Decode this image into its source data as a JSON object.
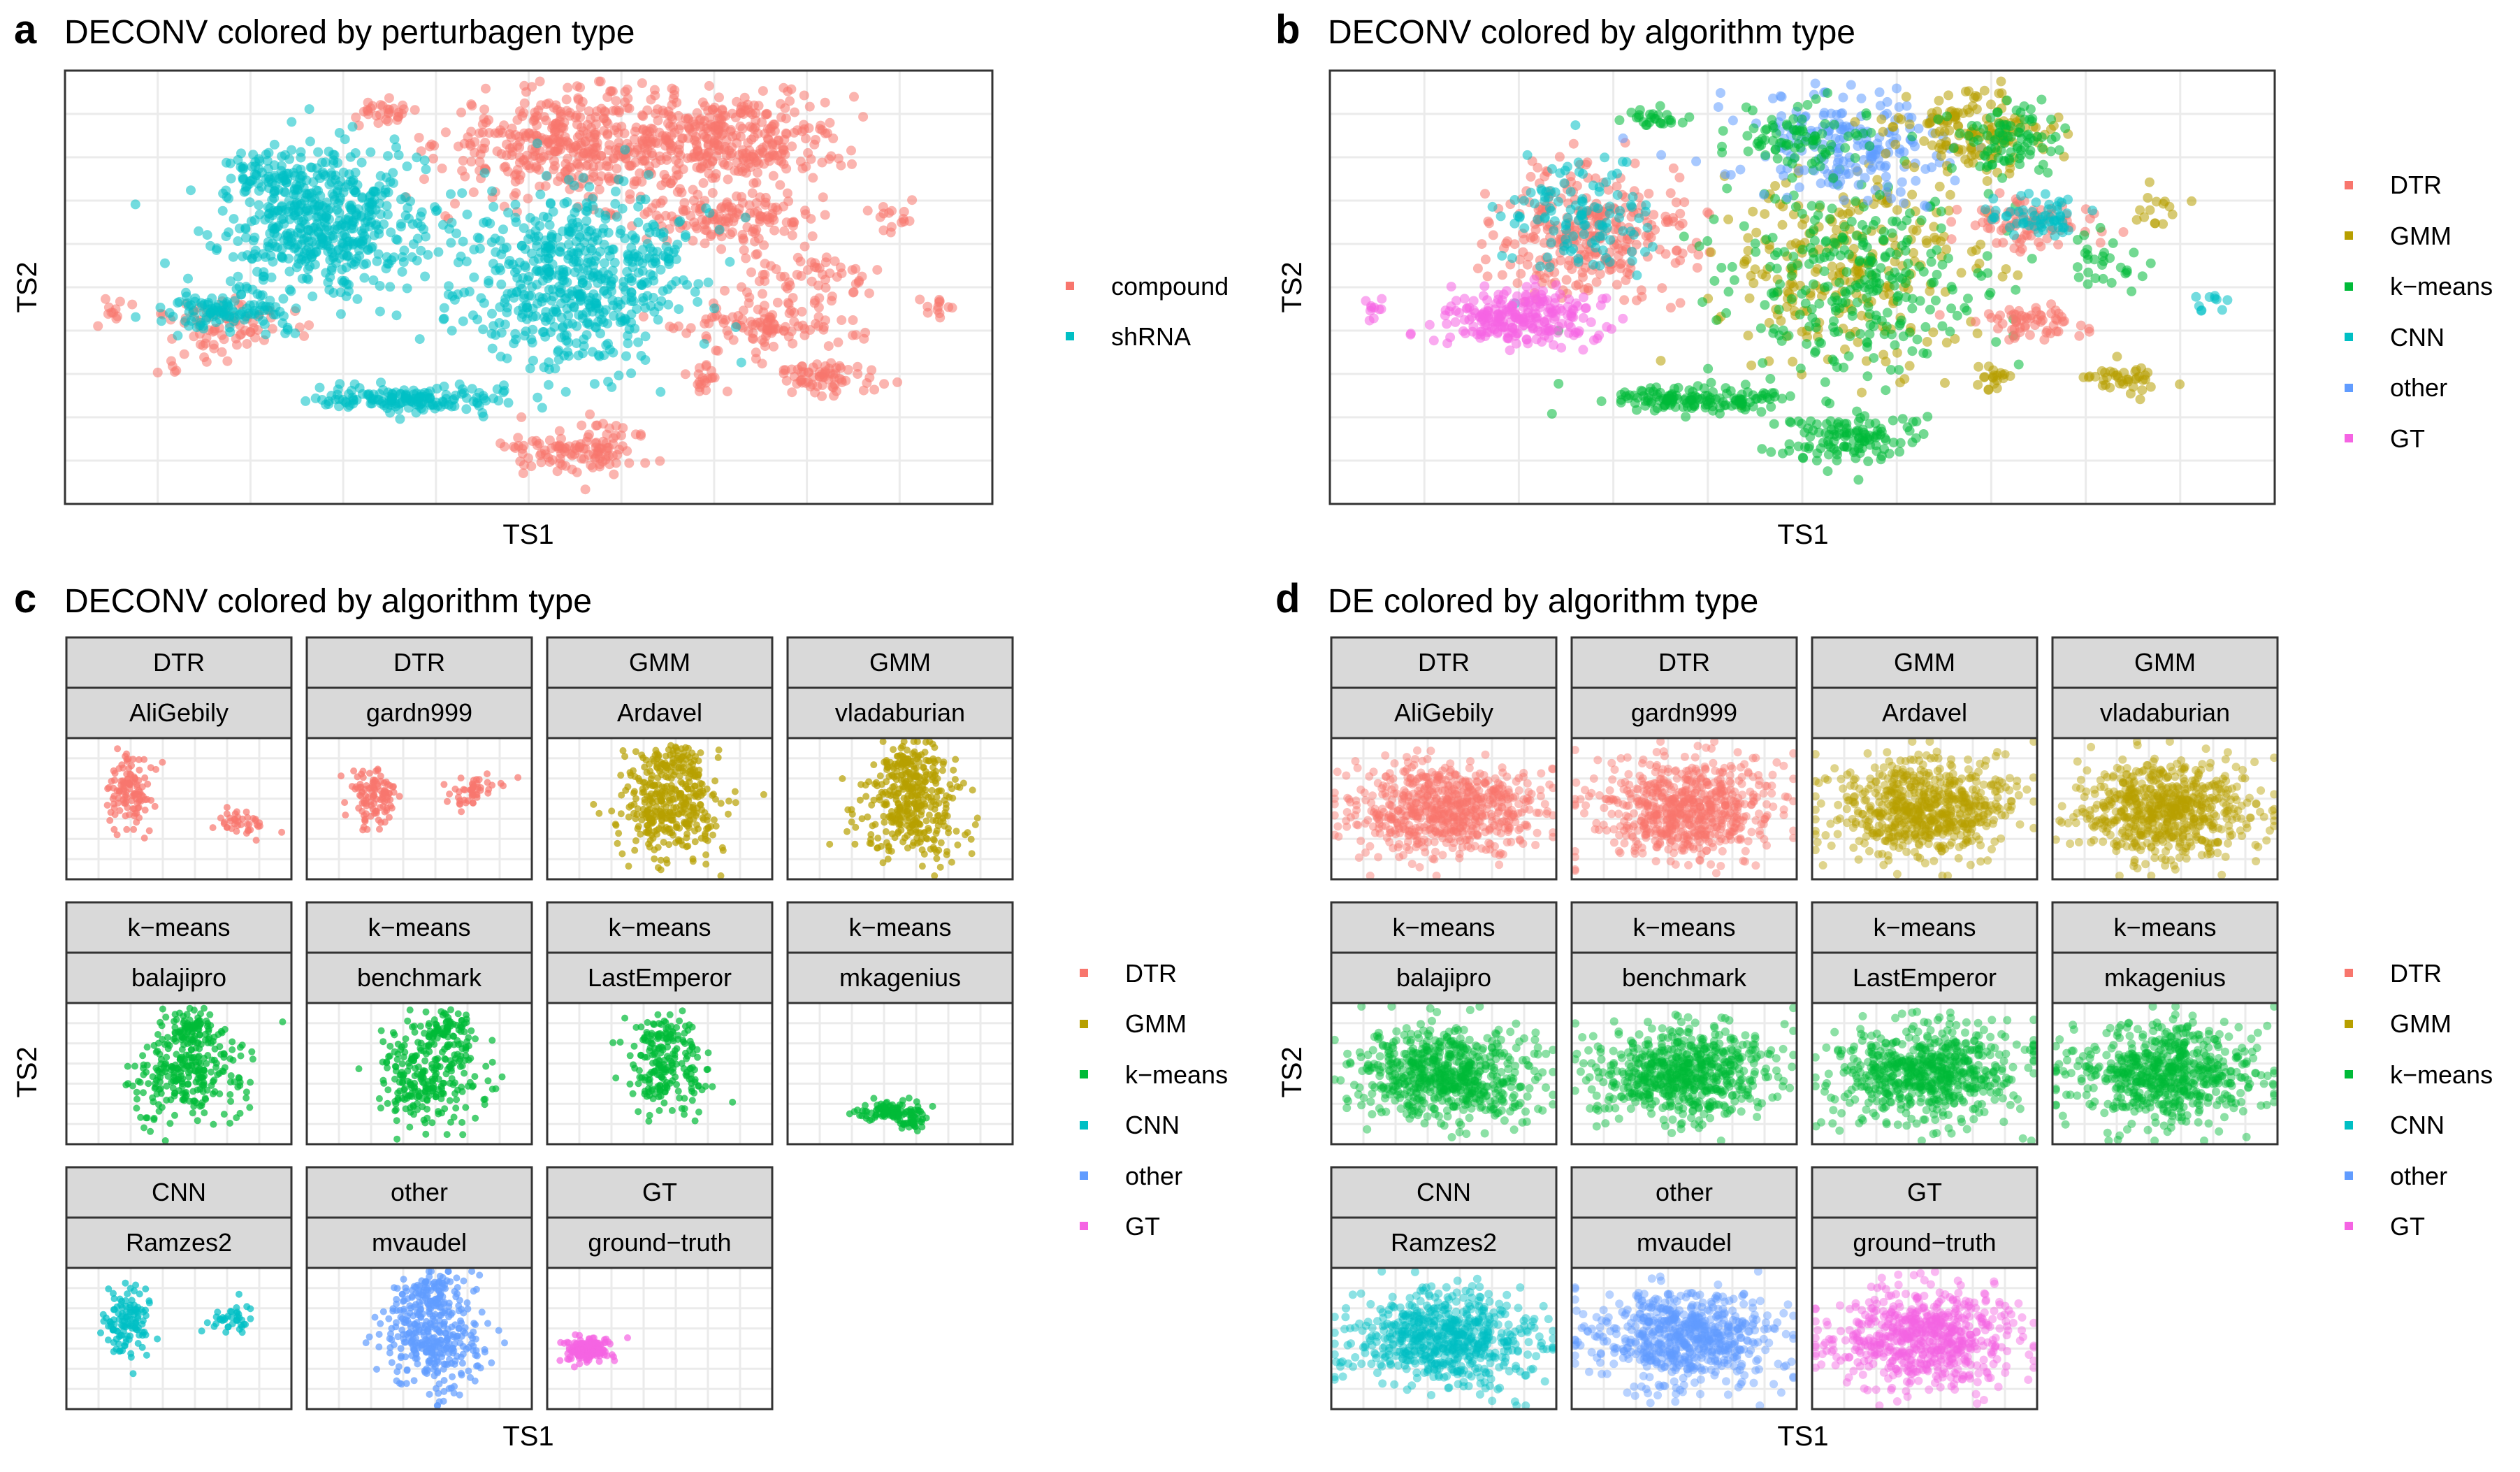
{
  "chart_data": [
    {
      "panel": "a",
      "type": "scatter",
      "title": "DECONV colored by perturbagen type",
      "xlabel": "TS1",
      "ylabel": "TS2",
      "legend": "right",
      "grid": true,
      "series": [
        {
          "name": "compound",
          "color": "#F8766D"
        },
        {
          "name": "shRNA",
          "color": "#00BFC4"
        }
      ],
      "clusters": [
        {
          "series": "compound",
          "x": 0.34,
          "y": 0.9,
          "sx": 0.02,
          "sy": 0.015,
          "n": 30
        },
        {
          "series": "compound",
          "x": 0.55,
          "y": 0.83,
          "sx": 0.07,
          "sy": 0.06,
          "n": 420
        },
        {
          "series": "compound",
          "x": 0.72,
          "y": 0.84,
          "sx": 0.06,
          "sy": 0.06,
          "n": 330
        },
        {
          "series": "compound",
          "x": 0.72,
          "y": 0.66,
          "sx": 0.04,
          "sy": 0.03,
          "n": 130
        },
        {
          "series": "compound",
          "x": 0.8,
          "y": 0.52,
          "sx": 0.04,
          "sy": 0.03,
          "n": 60
        },
        {
          "series": "compound",
          "x": 0.76,
          "y": 0.41,
          "sx": 0.05,
          "sy": 0.025,
          "n": 110
        },
        {
          "series": "compound",
          "x": 0.82,
          "y": 0.29,
          "sx": 0.03,
          "sy": 0.02,
          "n": 70
        },
        {
          "series": "compound",
          "x": 0.69,
          "y": 0.29,
          "sx": 0.01,
          "sy": 0.02,
          "n": 20
        },
        {
          "series": "compound",
          "x": 0.89,
          "y": 0.67,
          "sx": 0.015,
          "sy": 0.02,
          "n": 15
        },
        {
          "series": "compound",
          "x": 0.94,
          "y": 0.46,
          "sx": 0.01,
          "sy": 0.02,
          "n": 12
        },
        {
          "series": "compound",
          "x": 0.55,
          "y": 0.13,
          "sx": 0.04,
          "sy": 0.03,
          "n": 120
        },
        {
          "series": "compound",
          "x": 0.18,
          "y": 0.41,
          "sx": 0.04,
          "sy": 0.03,
          "n": 70
        },
        {
          "series": "compound",
          "x": 0.05,
          "y": 0.45,
          "sx": 0.01,
          "sy": 0.015,
          "n": 10
        },
        {
          "series": "compound",
          "x": 0.13,
          "y": 0.32,
          "sx": 0.02,
          "sy": 0.02,
          "n": 8
        },
        {
          "series": "shRNA",
          "x": 0.28,
          "y": 0.65,
          "sx": 0.055,
          "sy": 0.08,
          "n": 520
        },
        {
          "series": "shRNA",
          "x": 0.55,
          "y": 0.52,
          "sx": 0.06,
          "sy": 0.1,
          "n": 560
        },
        {
          "series": "shRNA",
          "x": 0.18,
          "y": 0.45,
          "sx": 0.04,
          "sy": 0.03,
          "n": 120
        },
        {
          "series": "shRNA",
          "x": 0.38,
          "y": 0.24,
          "sx": 0.05,
          "sy": 0.015,
          "n": 160
        },
        {
          "series": "shRNA",
          "x": 0.23,
          "y": 0.76,
          "sx": 0.03,
          "sy": 0.03,
          "n": 60
        }
      ]
    },
    {
      "panel": "b",
      "type": "scatter",
      "title": "DECONV colored by algorithm type",
      "xlabel": "TS1",
      "ylabel": "TS2",
      "legend": "right",
      "grid": true,
      "series": [
        {
          "name": "DTR",
          "color": "#F8766D"
        },
        {
          "name": "GMM",
          "color": "#B79F00"
        },
        {
          "name": "k−means",
          "color": "#00BA38"
        },
        {
          "name": "CNN",
          "color": "#00BFC4"
        },
        {
          "name": "other",
          "color": "#619CFF"
        },
        {
          "name": "GT",
          "color": "#F564E3"
        }
      ],
      "clusters": [
        {
          "series": "DTR",
          "x": 0.28,
          "y": 0.62,
          "sx": 0.05,
          "sy": 0.08,
          "n": 300
        },
        {
          "series": "CNN",
          "x": 0.26,
          "y": 0.65,
          "sx": 0.04,
          "sy": 0.07,
          "n": 120
        },
        {
          "series": "GMM",
          "x": 0.55,
          "y": 0.55,
          "sx": 0.07,
          "sy": 0.11,
          "n": 260
        },
        {
          "series": "k−means",
          "x": 0.55,
          "y": 0.5,
          "sx": 0.07,
          "sy": 0.11,
          "n": 280
        },
        {
          "series": "other",
          "x": 0.55,
          "y": 0.82,
          "sx": 0.06,
          "sy": 0.06,
          "n": 200
        },
        {
          "series": "k−means",
          "x": 0.5,
          "y": 0.85,
          "sx": 0.04,
          "sy": 0.05,
          "n": 90
        },
        {
          "series": "GMM",
          "x": 0.68,
          "y": 0.86,
          "sx": 0.04,
          "sy": 0.05,
          "n": 150
        },
        {
          "series": "k−means",
          "x": 0.72,
          "y": 0.84,
          "sx": 0.03,
          "sy": 0.05,
          "n": 90
        },
        {
          "series": "DTR",
          "x": 0.73,
          "y": 0.65,
          "sx": 0.04,
          "sy": 0.03,
          "n": 80
        },
        {
          "series": "CNN",
          "x": 0.75,
          "y": 0.66,
          "sx": 0.03,
          "sy": 0.025,
          "n": 60
        },
        {
          "series": "DTR",
          "x": 0.75,
          "y": 0.42,
          "sx": 0.03,
          "sy": 0.02,
          "n": 60
        },
        {
          "series": "GT",
          "x": 0.2,
          "y": 0.43,
          "sx": 0.04,
          "sy": 0.035,
          "n": 240
        },
        {
          "series": "GT",
          "x": 0.05,
          "y": 0.45,
          "sx": 0.01,
          "sy": 0.02,
          "n": 10
        },
        {
          "series": "k−means",
          "x": 0.38,
          "y": 0.24,
          "sx": 0.05,
          "sy": 0.015,
          "n": 140
        },
        {
          "series": "k−means",
          "x": 0.55,
          "y": 0.15,
          "sx": 0.04,
          "sy": 0.03,
          "n": 120
        },
        {
          "series": "k−means",
          "x": 0.34,
          "y": 0.89,
          "sx": 0.015,
          "sy": 0.015,
          "n": 25
        },
        {
          "series": "GMM",
          "x": 0.7,
          "y": 0.29,
          "sx": 0.01,
          "sy": 0.02,
          "n": 20
        },
        {
          "series": "GMM",
          "x": 0.84,
          "y": 0.29,
          "sx": 0.025,
          "sy": 0.02,
          "n": 40
        },
        {
          "series": "k−means",
          "x": 0.82,
          "y": 0.55,
          "sx": 0.03,
          "sy": 0.03,
          "n": 30
        },
        {
          "series": "GMM",
          "x": 0.88,
          "y": 0.68,
          "sx": 0.015,
          "sy": 0.02,
          "n": 15
        },
        {
          "series": "CNN",
          "x": 0.93,
          "y": 0.47,
          "sx": 0.01,
          "sy": 0.015,
          "n": 10
        }
      ]
    },
    {
      "panel": "c",
      "type": "scatter",
      "title": "DECONV colored by algorithm type",
      "xlabel": "TS1",
      "ylabel": "TS2",
      "legend": "right",
      "grid": true,
      "series": [
        {
          "name": "DTR",
          "color": "#F8766D"
        },
        {
          "name": "GMM",
          "color": "#B79F00"
        },
        {
          "name": "k−means",
          "color": "#00BA38"
        },
        {
          "name": "CNN",
          "color": "#00BFC4"
        },
        {
          "name": "other",
          "color": "#619CFF"
        },
        {
          "name": "GT",
          "color": "#F564E3"
        }
      ],
      "facets": [
        {
          "type": "DTR",
          "name": "AliGebily",
          "color": "#F8766D",
          "clusters": [
            {
              "x": 0.28,
              "y": 0.62,
              "sx": 0.05,
              "sy": 0.12,
              "n": 120
            },
            {
              "x": 0.78,
              "y": 0.4,
              "sx": 0.06,
              "sy": 0.05,
              "n": 40
            }
          ]
        },
        {
          "type": "DTR",
          "name": "gardn999",
          "color": "#F8766D",
          "clusters": [
            {
              "x": 0.3,
              "y": 0.6,
              "sx": 0.05,
              "sy": 0.1,
              "n": 110
            },
            {
              "x": 0.72,
              "y": 0.62,
              "sx": 0.07,
              "sy": 0.06,
              "n": 50
            }
          ]
        },
        {
          "type": "GMM",
          "name": "Ardavel",
          "color": "#B79F00",
          "clusters": [
            {
              "x": 0.55,
              "y": 0.5,
              "sx": 0.12,
              "sy": 0.18,
              "n": 320
            },
            {
              "x": 0.55,
              "y": 0.82,
              "sx": 0.07,
              "sy": 0.07,
              "n": 80
            }
          ]
        },
        {
          "type": "GMM",
          "name": "vladaburian",
          "color": "#B79F00",
          "clusters": [
            {
              "x": 0.55,
              "y": 0.5,
              "sx": 0.12,
              "sy": 0.18,
              "n": 300
            },
            {
              "x": 0.55,
              "y": 0.8,
              "sx": 0.07,
              "sy": 0.08,
              "n": 90
            }
          ]
        },
        {
          "type": "k−means",
          "name": "balajipro",
          "color": "#00BA38",
          "clusters": [
            {
              "x": 0.55,
              "y": 0.48,
              "sx": 0.12,
              "sy": 0.17,
              "n": 260
            },
            {
              "x": 0.55,
              "y": 0.82,
              "sx": 0.06,
              "sy": 0.06,
              "n": 80
            }
          ]
        },
        {
          "type": "k−means",
          "name": "benchmark",
          "color": "#00BA38",
          "clusters": [
            {
              "x": 0.55,
              "y": 0.48,
              "sx": 0.12,
              "sy": 0.17,
              "n": 260
            },
            {
              "x": 0.62,
              "y": 0.82,
              "sx": 0.06,
              "sy": 0.06,
              "n": 70
            }
          ]
        },
        {
          "type": "k−means",
          "name": "LastEmperor",
          "color": "#00BA38",
          "clusters": [
            {
              "x": 0.55,
              "y": 0.5,
              "sx": 0.1,
              "sy": 0.15,
              "n": 170
            },
            {
              "x": 0.5,
              "y": 0.8,
              "sx": 0.06,
              "sy": 0.06,
              "n": 50
            }
          ]
        },
        {
          "type": "k−means",
          "name": "mkagenius",
          "color": "#00BA38",
          "clusters": [
            {
              "x": 0.45,
              "y": 0.24,
              "sx": 0.07,
              "sy": 0.03,
              "n": 90
            },
            {
              "x": 0.55,
              "y": 0.17,
              "sx": 0.04,
              "sy": 0.03,
              "n": 40
            }
          ]
        },
        {
          "type": "CNN",
          "name": "Ramzes2",
          "color": "#00BFC4",
          "clusters": [
            {
              "x": 0.28,
              "y": 0.62,
              "sx": 0.05,
              "sy": 0.12,
              "n": 120
            },
            {
              "x": 0.72,
              "y": 0.62,
              "sx": 0.05,
              "sy": 0.06,
              "n": 40
            }
          ]
        },
        {
          "type": "other",
          "name": "mvaudel",
          "color": "#619CFF",
          "clusters": [
            {
              "x": 0.55,
              "y": 0.5,
              "sx": 0.12,
              "sy": 0.18,
              "n": 330
            },
            {
              "x": 0.55,
              "y": 0.82,
              "sx": 0.07,
              "sy": 0.07,
              "n": 80
            }
          ]
        },
        {
          "type": "GT",
          "name": "ground−truth",
          "color": "#F564E3",
          "clusters": [
            {
              "x": 0.18,
              "y": 0.42,
              "sx": 0.05,
              "sy": 0.04,
              "n": 160
            }
          ]
        }
      ]
    },
    {
      "panel": "d",
      "type": "scatter",
      "title": "DE colored by algorithm type",
      "xlabel": "TS1",
      "ylabel": "TS2",
      "legend": "right",
      "grid": true,
      "series": [
        {
          "name": "DTR",
          "color": "#F8766D"
        },
        {
          "name": "GMM",
          "color": "#B79F00"
        },
        {
          "name": "k−means",
          "color": "#00BA38"
        },
        {
          "name": "CNN",
          "color": "#00BFC4"
        },
        {
          "name": "other",
          "color": "#619CFF"
        },
        {
          "name": "GT",
          "color": "#F564E3"
        }
      ],
      "facets": [
        {
          "type": "DTR",
          "name": "AliGebily",
          "color": "#F8766D",
          "clusters": [
            {
              "x": 0.5,
              "y": 0.5,
              "sx": 0.2,
              "sy": 0.17,
              "n": 650
            }
          ]
        },
        {
          "type": "DTR",
          "name": "gardn999",
          "color": "#F8766D",
          "clusters": [
            {
              "x": 0.5,
              "y": 0.5,
              "sx": 0.2,
              "sy": 0.17,
              "n": 650
            }
          ]
        },
        {
          "type": "GMM",
          "name": "Ardavel",
          "color": "#B79F00",
          "clusters": [
            {
              "x": 0.5,
              "y": 0.5,
              "sx": 0.2,
              "sy": 0.17,
              "n": 650
            }
          ]
        },
        {
          "type": "GMM",
          "name": "vladaburian",
          "color": "#B79F00",
          "clusters": [
            {
              "x": 0.5,
              "y": 0.5,
              "sx": 0.2,
              "sy": 0.17,
              "n": 650
            }
          ]
        },
        {
          "type": "k−means",
          "name": "balajipro",
          "color": "#00BA38",
          "clusters": [
            {
              "x": 0.5,
              "y": 0.5,
              "sx": 0.2,
              "sy": 0.17,
              "n": 650
            }
          ]
        },
        {
          "type": "k−means",
          "name": "benchmark",
          "color": "#00BA38",
          "clusters": [
            {
              "x": 0.5,
              "y": 0.5,
              "sx": 0.2,
              "sy": 0.17,
              "n": 650
            }
          ]
        },
        {
          "type": "k−means",
          "name": "LastEmperor",
          "color": "#00BA38",
          "clusters": [
            {
              "x": 0.5,
              "y": 0.5,
              "sx": 0.2,
              "sy": 0.17,
              "n": 650
            }
          ]
        },
        {
          "type": "k−means",
          "name": "mkagenius",
          "color": "#00BA38",
          "clusters": [
            {
              "x": 0.5,
              "y": 0.5,
              "sx": 0.2,
              "sy": 0.17,
              "n": 650
            }
          ]
        },
        {
          "type": "CNN",
          "name": "Ramzes2",
          "color": "#00BFC4",
          "clusters": [
            {
              "x": 0.5,
              "y": 0.5,
              "sx": 0.2,
              "sy": 0.17,
              "n": 650
            }
          ]
        },
        {
          "type": "other",
          "name": "mvaudel",
          "color": "#619CFF",
          "clusters": [
            {
              "x": 0.5,
              "y": 0.5,
              "sx": 0.2,
              "sy": 0.17,
              "n": 650
            }
          ]
        },
        {
          "type": "GT",
          "name": "ground−truth",
          "color": "#F564E3",
          "clusters": [
            {
              "x": 0.5,
              "y": 0.5,
              "sx": 0.2,
              "sy": 0.17,
              "n": 650
            }
          ]
        }
      ]
    }
  ]
}
